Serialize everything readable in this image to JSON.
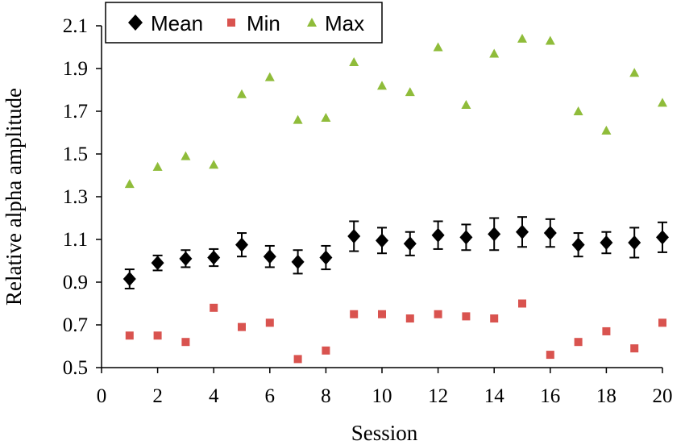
{
  "chart_data": {
    "type": "scatter",
    "title": "",
    "xlabel": "Session",
    "ylabel": "Relative alpha amplitude",
    "xlim": [
      0,
      20
    ],
    "ylim": [
      0.5,
      2.1
    ],
    "xticks": [
      0,
      2,
      4,
      6,
      8,
      10,
      12,
      14,
      16,
      18,
      20
    ],
    "xtick_labels": [
      "0",
      "2",
      "4",
      "6",
      "8",
      "10",
      "12",
      "14",
      "16",
      "18",
      "20"
    ],
    "yticks": [
      0.5,
      0.7,
      0.9,
      1.1,
      1.3,
      1.5,
      1.7,
      1.9,
      2.1
    ],
    "ytick_labels": [
      "0.5",
      "0.7",
      "0.9",
      "1.1",
      "1.3",
      "1.5",
      "1.7",
      "1.9",
      "2.1"
    ],
    "grid": false,
    "legend_position": "top-left",
    "x": [
      1,
      2,
      3,
      4,
      5,
      6,
      7,
      8,
      9,
      10,
      11,
      12,
      13,
      14,
      15,
      16,
      17,
      18,
      19,
      20
    ],
    "series": [
      {
        "name": "Mean",
        "marker": "diamond",
        "color": "#000000",
        "values": [
          0.915,
          0.99,
          1.01,
          1.015,
          1.075,
          1.02,
          0.995,
          1.015,
          1.115,
          1.095,
          1.08,
          1.12,
          1.11,
          1.125,
          1.135,
          1.13,
          1.075,
          1.085,
          1.085,
          1.11
        ],
        "error": [
          0.045,
          0.035,
          0.04,
          0.04,
          0.055,
          0.05,
          0.055,
          0.055,
          0.07,
          0.06,
          0.055,
          0.065,
          0.06,
          0.075,
          0.07,
          0.065,
          0.055,
          0.05,
          0.07,
          0.07
        ]
      },
      {
        "name": "Min",
        "marker": "square",
        "color": "#d9534f",
        "values": [
          0.65,
          0.65,
          0.62,
          0.78,
          0.69,
          0.71,
          0.54,
          0.58,
          0.75,
          0.75,
          0.73,
          0.75,
          0.74,
          0.73,
          0.8,
          0.56,
          0.62,
          0.67,
          0.59,
          0.71
        ]
      },
      {
        "name": "Max",
        "marker": "triangle",
        "color": "#8fbc3a",
        "values": [
          1.36,
          1.44,
          1.49,
          1.45,
          1.78,
          1.86,
          1.66,
          1.67,
          1.93,
          1.82,
          1.79,
          2.0,
          1.73,
          1.97,
          2.04,
          2.03,
          1.7,
          1.61,
          1.88,
          1.74
        ]
      }
    ]
  }
}
